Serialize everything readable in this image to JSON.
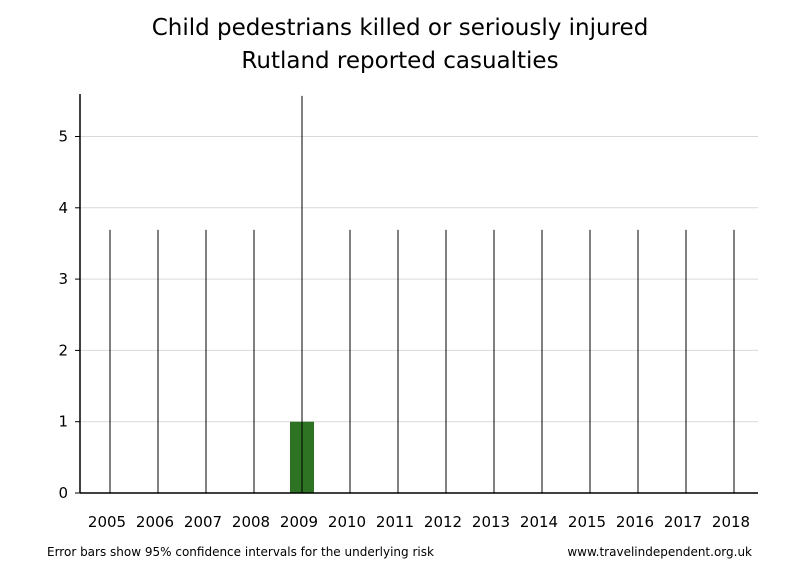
{
  "chart_data": {
    "type": "bar",
    "title": "Child pedestrians killed or seriously injured",
    "subtitle": "Rutland reported casualties",
    "xlabel": "",
    "ylabel": "",
    "categories": [
      "2005",
      "2006",
      "2007",
      "2008",
      "2009",
      "2010",
      "2011",
      "2012",
      "2013",
      "2014",
      "2015",
      "2016",
      "2017",
      "2018"
    ],
    "values": [
      0,
      0,
      0,
      0,
      1,
      0,
      0,
      0,
      0,
      0,
      0,
      0,
      0,
      0
    ],
    "error_upper": [
      3.69,
      3.69,
      3.69,
      3.69,
      5.57,
      3.69,
      3.69,
      3.69,
      3.69,
      3.69,
      3.69,
      3.69,
      3.69,
      3.69
    ],
    "error_lower": [
      0,
      0,
      0,
      0,
      0,
      0,
      0,
      0,
      0,
      0,
      0,
      0,
      0,
      0
    ],
    "ylim": [
      0,
      5.57
    ],
    "yticks": [
      0,
      1,
      2,
      3,
      4,
      5
    ],
    "grid": true,
    "bar_color": "#2e7223",
    "grid_color": "#d9d9d9"
  },
  "footer": {
    "note": "Error bars show 95% confidence intervals for the underlying risk",
    "source": "www.travelindependent.org.uk"
  }
}
